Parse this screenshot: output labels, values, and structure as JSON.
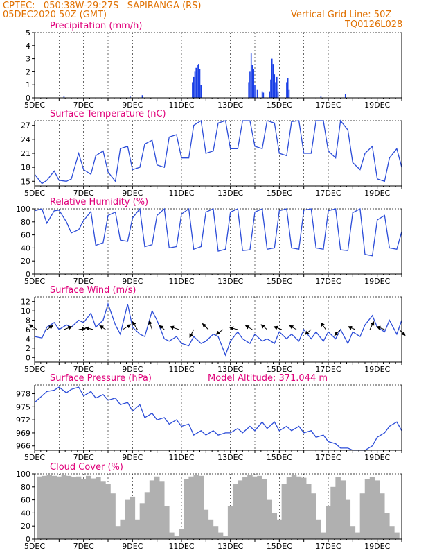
{
  "header": {
    "line1": "CPTEC:   050:38W-29:27S   SAPIRANGA (RS)",
    "line2": "05DEC2020 50Z (GMT)",
    "grid_note": "Vertical Grid Line: 50Z",
    "code": "TQ0126L028"
  },
  "colors": {
    "header": "#e07000",
    "title": "#e0007a",
    "line": "#2b4cd8",
    "bar": "#1a3fe6",
    "cloud": "#b0b0b0"
  },
  "chart_data": [
    {
      "type": "bar",
      "title": "Precipitation  (mm/h)",
      "x_tick_labels": [
        "5DEC",
        "7DEC",
        "9DEC",
        "11DEC",
        "13DEC",
        "15DEC",
        "17DEC",
        "19DEC"
      ],
      "x_range_days": [
        5,
        20
      ],
      "ylim": [
        0,
        5
      ],
      "y_ticks": [
        0,
        1,
        2,
        3,
        4,
        5
      ],
      "x": [
        6.2,
        8.9,
        9.4,
        11.45,
        11.5,
        11.55,
        11.6,
        11.65,
        11.7,
        11.75,
        11.8,
        13.75,
        13.8,
        13.85,
        13.9,
        13.95,
        14.0,
        14.1,
        14.3,
        14.35,
        14.6,
        14.65,
        14.7,
        14.75,
        14.8,
        14.85,
        14.9,
        14.95,
        15.3,
        15.35,
        15.4,
        16.7,
        17.7
      ],
      "values": [
        0.1,
        0.1,
        0.2,
        1.2,
        1.6,
        2.0,
        2.3,
        2.5,
        2.6,
        2.2,
        1.0,
        1.2,
        2.0,
        3.4,
        2.5,
        2.2,
        1.0,
        0.6,
        0.5,
        0.4,
        0.5,
        1.4,
        3.0,
        2.6,
        1.8,
        1.2,
        1.6,
        0.5,
        1.2,
        1.5,
        0.6,
        0.1,
        0.3
      ]
    },
    {
      "type": "line",
      "title": "Surface Temperature  (nC)",
      "x_tick_labels": [
        "5DEC",
        "7DEC",
        "9DEC",
        "11DEC",
        "13DEC",
        "15DEC",
        "17DEC",
        "19DEC"
      ],
      "x_range_days": [
        5,
        20
      ],
      "ylim": [
        14,
        28
      ],
      "y_ticks": [
        15,
        18,
        21,
        24,
        27
      ],
      "y_tick_labels": [
        "15",
        "18",
        "21",
        "24",
        "27"
      ],
      "x": [
        5.0,
        5.3,
        5.5,
        5.8,
        6.0,
        6.3,
        6.5,
        6.8,
        7.0,
        7.3,
        7.5,
        7.8,
        8.0,
        8.3,
        8.5,
        8.8,
        9.0,
        9.3,
        9.5,
        9.8,
        10.0,
        10.3,
        10.5,
        10.8,
        11.0,
        11.3,
        11.5,
        11.8,
        12.0,
        12.3,
        12.5,
        12.8,
        13.0,
        13.3,
        13.5,
        13.8,
        14.0,
        14.3,
        14.5,
        14.8,
        15.0,
        15.3,
        15.5,
        15.8,
        16.0,
        16.3,
        16.5,
        16.8,
        17.0,
        17.3,
        17.5,
        17.8,
        18.0,
        18.3,
        18.5,
        18.8,
        19.0,
        19.3,
        19.5,
        19.8,
        20.0
      ],
      "values": [
        16.5,
        14.5,
        15.2,
        17.2,
        15.2,
        15.0,
        15.5,
        21.0,
        17.5,
        16.5,
        20.5,
        21.5,
        17.0,
        15.0,
        22.0,
        22.5,
        17.5,
        18.0,
        23.0,
        23.8,
        18.5,
        18.0,
        24.5,
        25.0,
        20.0,
        20.0,
        27.0,
        28.0,
        21.0,
        21.5,
        27.5,
        28.0,
        22.0,
        22.0,
        28.0,
        28.0,
        22.5,
        22.0,
        28.0,
        27.5,
        21.0,
        20.5,
        27.8,
        28.0,
        21.0,
        21.0,
        28.0,
        28.0,
        21.5,
        20.0,
        28.0,
        26.0,
        19.0,
        17.5,
        21.0,
        22.5,
        15.5,
        15.0,
        20.0,
        22.0,
        18.0
      ]
    },
    {
      "type": "line",
      "title": "Relative Humidity  (%)",
      "x_tick_labels": [
        "5DEC",
        "7DEC",
        "9DEC",
        "11DEC",
        "13DEC",
        "15DEC",
        "17DEC",
        "19DEC"
      ],
      "x_range_days": [
        5,
        20
      ],
      "ylim": [
        0,
        100
      ],
      "y_ticks": [
        0,
        20,
        40,
        60,
        80,
        100
      ],
      "y_tick_labels": [
        "0",
        "20",
        "40",
        "60",
        "80",
        "100"
      ],
      "x": [
        5.0,
        5.3,
        5.5,
        5.8,
        6.0,
        6.3,
        6.5,
        6.8,
        7.0,
        7.3,
        7.5,
        7.8,
        8.0,
        8.3,
        8.5,
        8.8,
        9.0,
        9.3,
        9.5,
        9.8,
        10.0,
        10.3,
        10.5,
        10.8,
        11.0,
        11.3,
        11.5,
        11.8,
        12.0,
        12.3,
        12.5,
        12.8,
        13.0,
        13.3,
        13.5,
        13.8,
        14.0,
        14.3,
        14.5,
        14.8,
        15.0,
        15.3,
        15.5,
        15.8,
        16.0,
        16.3,
        16.5,
        16.8,
        17.0,
        17.3,
        17.5,
        17.8,
        18.0,
        18.3,
        18.5,
        18.8,
        19.0,
        19.3,
        19.5,
        19.8,
        20.0
      ],
      "values": [
        97,
        100,
        78,
        97,
        98,
        80,
        63,
        68,
        82,
        96,
        44,
        48,
        90,
        95,
        52,
        50,
        86,
        100,
        42,
        45,
        90,
        100,
        40,
        42,
        92,
        100,
        38,
        42,
        95,
        100,
        35,
        38,
        95,
        100,
        36,
        37,
        95,
        100,
        38,
        40,
        97,
        100,
        40,
        38,
        98,
        100,
        40,
        38,
        97,
        100,
        37,
        36,
        94,
        100,
        30,
        28,
        83,
        90,
        40,
        38,
        65
      ]
    },
    {
      "type": "line",
      "title": "Surface Wind  (m/s)",
      "x_tick_labels": [
        "5DEC",
        "7DEC",
        "9DEC",
        "11DEC",
        "13DEC",
        "15DEC",
        "17DEC",
        "19DEC"
      ],
      "x_range_days": [
        5,
        20
      ],
      "ylim": [
        -1,
        13
      ],
      "y_ticks": [
        0,
        2,
        4,
        6,
        8,
        10,
        12
      ],
      "y_tick_labels": [
        "0",
        "2",
        "4",
        "6",
        "8",
        "10",
        "12"
      ],
      "x": [
        5.0,
        5.3,
        5.5,
        5.8,
        6.0,
        6.3,
        6.5,
        6.8,
        7.0,
        7.3,
        7.5,
        7.8,
        8.0,
        8.3,
        8.5,
        8.8,
        9.0,
        9.3,
        9.5,
        9.8,
        10.0,
        10.3,
        10.5,
        10.8,
        11.0,
        11.3,
        11.5,
        11.8,
        12.0,
        12.3,
        12.5,
        12.8,
        13.0,
        13.3,
        13.5,
        13.8,
        14.0,
        14.3,
        14.5,
        14.8,
        15.0,
        15.3,
        15.5,
        15.8,
        16.0,
        16.3,
        16.5,
        16.8,
        17.0,
        17.3,
        17.5,
        17.8,
        18.0,
        18.3,
        18.5,
        18.8,
        19.0,
        19.3,
        19.5,
        19.8,
        20.0
      ],
      "values": [
        4.5,
        4.2,
        6.5,
        7.5,
        6.0,
        7.0,
        6.5,
        8.0,
        7.5,
        9.5,
        6.5,
        8.0,
        11.5,
        7.0,
        5.0,
        11.5,
        6.5,
        5.0,
        4.5,
        10.0,
        8.0,
        4.0,
        3.5,
        4.5,
        3.0,
        2.5,
        4.5,
        3.0,
        3.5,
        5.0,
        4.5,
        0.5,
        3.5,
        5.5,
        4.0,
        3.0,
        5.0,
        3.5,
        4.0,
        3.0,
        5.5,
        4.0,
        5.0,
        3.5,
        6.0,
        4.0,
        5.5,
        3.5,
        5.5,
        4.0,
        6.0,
        3.0,
        5.5,
        4.5,
        7.0,
        9.0,
        6.5,
        5.5,
        8.0,
        5.0,
        8.0
      ],
      "arrows": [
        {
          "day": 5.1,
          "dx": -0.8,
          "dy": 0.5
        },
        {
          "day": 5.5,
          "dx": 0.6,
          "dy": 0.4
        },
        {
          "day": 6.2,
          "dx": 0.8,
          "dy": 0.3
        },
        {
          "day": 6.8,
          "dx": 0.7,
          "dy": 0.1
        },
        {
          "day": 7.4,
          "dx": -0.8,
          "dy": 0.2
        },
        {
          "day": 7.9,
          "dx": -0.6,
          "dy": 0.4
        },
        {
          "day": 8.6,
          "dx": 0.8,
          "dy": 0.5
        },
        {
          "day": 9.2,
          "dx": -0.5,
          "dy": 0.8
        },
        {
          "day": 9.8,
          "dx": -0.3,
          "dy": 0.9
        },
        {
          "day": 10.3,
          "dx": -0.5,
          "dy": 0.4
        },
        {
          "day": 10.9,
          "dx": -0.9,
          "dy": 0.3
        },
        {
          "day": 11.5,
          "dx": -0.4,
          "dy": -0.8
        },
        {
          "day": 12.1,
          "dx": -0.6,
          "dy": 0.6
        },
        {
          "day": 12.7,
          "dx": -0.7,
          "dy": -0.5
        },
        {
          "day": 13.3,
          "dx": -0.8,
          "dy": 0.2
        },
        {
          "day": 13.9,
          "dx": -0.7,
          "dy": 0.4
        },
        {
          "day": 14.5,
          "dx": -0.6,
          "dy": 0.5
        },
        {
          "day": 15.1,
          "dx": -0.8,
          "dy": 0.3
        },
        {
          "day": 15.7,
          "dx": -0.7,
          "dy": 0.4
        },
        {
          "day": 16.3,
          "dx": -0.6,
          "dy": -0.5
        },
        {
          "day": 16.9,
          "dx": -0.5,
          "dy": 0.7
        },
        {
          "day": 17.5,
          "dx": -0.6,
          "dy": -0.6
        },
        {
          "day": 18.1,
          "dx": -0.7,
          "dy": 0.3
        },
        {
          "day": 18.7,
          "dx": 0.4,
          "dy": 0.8
        },
        {
          "day": 19.3,
          "dx": -0.8,
          "dy": 0.3
        },
        {
          "day": 19.9,
          "dx": 0.6,
          "dy": -0.6
        }
      ]
    },
    {
      "type": "line",
      "title": "Surface Pressure  (hPa)",
      "annotation": "Model Altitude: 371.044 m",
      "x_tick_labels": [
        "5DEC",
        "7DEC",
        "9DEC",
        "11DEC",
        "13DEC",
        "15DEC",
        "17DEC",
        "19DEC"
      ],
      "x_range_days": [
        5,
        20
      ],
      "ylim": [
        965,
        980
      ],
      "y_ticks": [
        966,
        969,
        972,
        975,
        978
      ],
      "y_tick_labels": [
        "966",
        "969",
        "972",
        "975",
        "978"
      ],
      "x": [
        5.0,
        5.3,
        5.5,
        5.8,
        6.0,
        6.3,
        6.5,
        6.8,
        7.0,
        7.3,
        7.5,
        7.8,
        8.0,
        8.3,
        8.5,
        8.8,
        9.0,
        9.3,
        9.5,
        9.8,
        10.0,
        10.3,
        10.5,
        10.8,
        11.0,
        11.3,
        11.5,
        11.8,
        12.0,
        12.3,
        12.5,
        12.8,
        13.0,
        13.3,
        13.5,
        13.8,
        14.0,
        14.3,
        14.5,
        14.8,
        15.0,
        15.3,
        15.5,
        15.8,
        16.0,
        16.3,
        16.5,
        16.8,
        17.0,
        17.3,
        17.5,
        17.8,
        18.0,
        18.3,
        18.5,
        18.8,
        19.0,
        19.3,
        19.5,
        19.8,
        20.0
      ],
      "values": [
        976.0,
        977.5,
        978.5,
        978.8,
        979.5,
        978.2,
        979.0,
        979.5,
        977.5,
        978.5,
        977.0,
        977.8,
        976.5,
        977.0,
        975.5,
        976.0,
        974.0,
        975.5,
        972.5,
        973.5,
        972.0,
        972.5,
        971.0,
        972.0,
        970.5,
        971.0,
        968.5,
        969.5,
        968.5,
        969.5,
        968.5,
        969.0,
        969.0,
        970.0,
        969.0,
        970.5,
        969.5,
        971.5,
        970.0,
        971.5,
        969.5,
        970.5,
        969.5,
        970.5,
        969.0,
        969.5,
        968.0,
        968.5,
        967.0,
        966.5,
        965.5,
        965.5,
        965.0,
        965.0,
        965.0,
        966.0,
        968.0,
        969.0,
        970.5,
        971.5,
        969.5
      ]
    },
    {
      "type": "bar",
      "title": "Cloud Cover  (%)",
      "x_tick_labels": [
        "5DEC",
        "7DEC",
        "9DEC",
        "11DEC",
        "13DEC",
        "15DEC",
        "17DEC",
        "19DEC"
      ],
      "x_range_days": [
        5,
        20
      ],
      "ylim": [
        0,
        100
      ],
      "y_ticks": [
        0,
        20,
        40,
        60,
        80,
        100
      ],
      "y_tick_labels": [
        "0",
        "20",
        "40",
        "60",
        "80",
        "100"
      ],
      "x": [
        5.2,
        5.4,
        5.6,
        5.8,
        6.0,
        6.2,
        6.4,
        6.6,
        6.8,
        7.0,
        7.2,
        7.4,
        7.6,
        7.8,
        8.0,
        8.2,
        8.4,
        8.6,
        8.8,
        9.0,
        9.2,
        9.4,
        9.6,
        9.8,
        10.0,
        10.2,
        10.4,
        10.6,
        10.8,
        11.0,
        11.2,
        11.4,
        11.6,
        11.8,
        12.0,
        12.2,
        12.4,
        12.6,
        12.8,
        13.0,
        13.2,
        13.4,
        13.6,
        13.8,
        14.0,
        14.2,
        14.4,
        14.6,
        14.8,
        15.0,
        15.2,
        15.4,
        15.6,
        15.8,
        16.0,
        16.2,
        16.4,
        16.6,
        16.8,
        17.0,
        17.2,
        17.4,
        17.6,
        17.8,
        18.0,
        18.2,
        18.4,
        18.6,
        18.8,
        19.0,
        19.2,
        19.4,
        19.6,
        19.8
      ],
      "values": [
        96,
        97,
        98,
        97,
        96,
        98,
        97,
        95,
        96,
        92,
        97,
        93,
        95,
        88,
        85,
        70,
        20,
        30,
        60,
        65,
        30,
        55,
        72,
        90,
        96,
        88,
        50,
        10,
        5,
        15,
        92,
        96,
        98,
        97,
        45,
        30,
        20,
        10,
        5,
        50,
        85,
        90,
        95,
        98,
        96,
        97,
        92,
        60,
        40,
        30,
        85,
        95,
        98,
        96,
        94,
        85,
        70,
        30,
        10,
        50,
        80,
        95,
        90,
        60,
        20,
        10,
        70,
        92,
        95,
        90,
        70,
        40,
        20,
        10
      ]
    }
  ]
}
